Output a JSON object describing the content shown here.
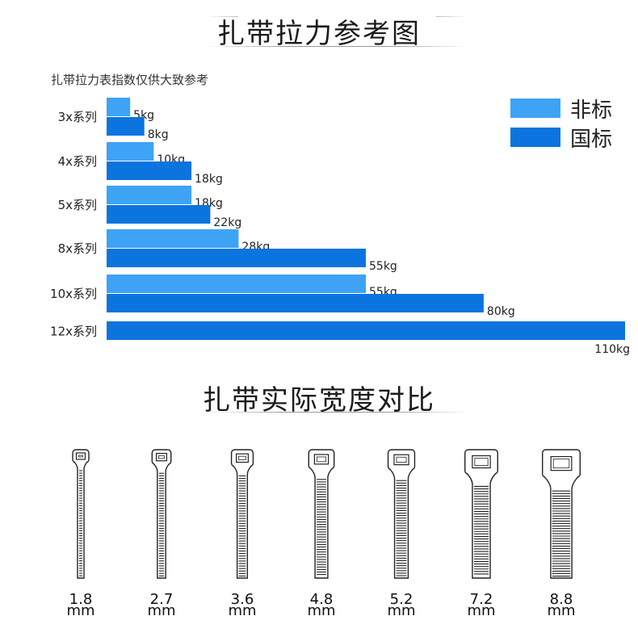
{
  "header": {
    "title": "扎带拉力参考图"
  },
  "chart_data": {
    "type": "bar",
    "subtitle": "扎带拉力表指数仅供大致参考",
    "categories": [
      "3x系列",
      "4x系列",
      "5x系列",
      "8x系列",
      "10x系列",
      "12x系列"
    ],
    "series": [
      {
        "name": "非标",
        "color": "#3ea3f5",
        "values": [
          5,
          10,
          18,
          28,
          55,
          null
        ],
        "labels": [
          "5kg",
          "10kg",
          "18kg",
          "28kg",
          "55kg",
          ""
        ]
      },
      {
        "name": "国标",
        "color": "#0b74de",
        "values": [
          8,
          18,
          22,
          55,
          80,
          110
        ],
        "labels": [
          "8kg",
          "18kg",
          "22kg",
          "55kg",
          "80kg",
          "110kg"
        ]
      }
    ],
    "unit": "kg",
    "orientation": "horizontal",
    "legend_position": "top-right",
    "xlim": [
      0,
      110
    ]
  },
  "widths_section": {
    "title": "扎带实际宽度对比",
    "items": [
      {
        "value": "1.8",
        "unit": "mm"
      },
      {
        "value": "2.7",
        "unit": "mm"
      },
      {
        "value": "3.6",
        "unit": "mm"
      },
      {
        "value": "4.8",
        "unit": "mm"
      },
      {
        "value": "5.2",
        "unit": "mm"
      },
      {
        "value": "7.2",
        "unit": "mm"
      },
      {
        "value": "8.8",
        "unit": "mm"
      }
    ]
  }
}
